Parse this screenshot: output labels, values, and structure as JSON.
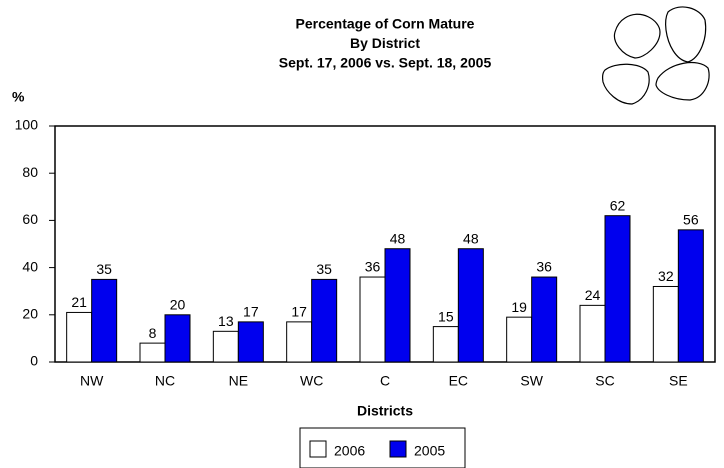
{
  "chart_data": {
    "type": "bar",
    "title_lines": [
      "Percentage of Corn Mature",
      "By District",
      "Sept. 17, 2006 vs. Sept. 18, 2005"
    ],
    "ylabel": "%",
    "xlabel": "Districts",
    "categories": [
      "NW",
      "NC",
      "NE",
      "WC",
      "C",
      "EC",
      "SW",
      "SC",
      "SE"
    ],
    "series": [
      {
        "name": "2006",
        "color": "#ffffff",
        "values": [
          21,
          8,
          13,
          17,
          36,
          15,
          19,
          24,
          32
        ]
      },
      {
        "name": "2005",
        "color": "#0000ee",
        "values": [
          35,
          20,
          17,
          35,
          48,
          48,
          36,
          62,
          56
        ]
      }
    ],
    "ylim": [
      0,
      100
    ],
    "yticks": [
      0,
      20,
      40,
      60,
      80,
      100
    ],
    "grid": false,
    "legend": "bottom"
  }
}
